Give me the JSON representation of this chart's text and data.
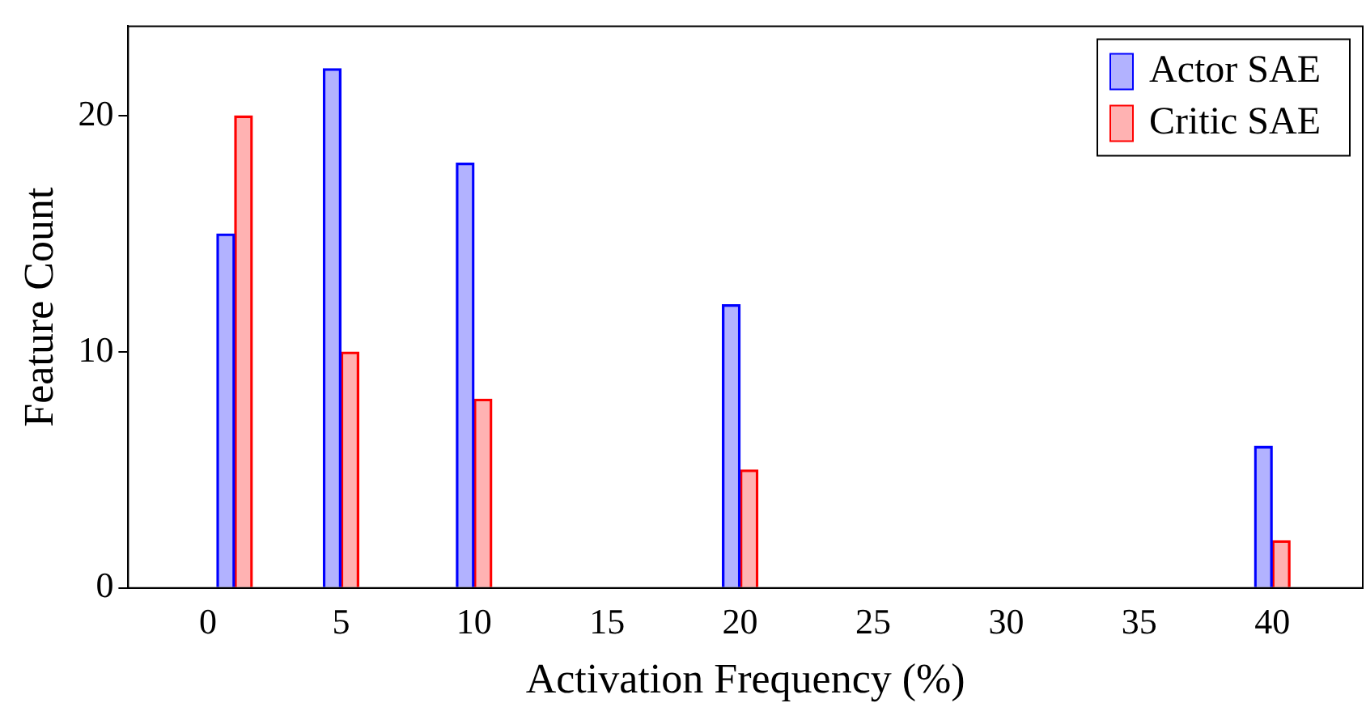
{
  "chart_data": {
    "type": "bar",
    "xlabel": "Activation Frequency (%)",
    "ylabel": "Feature Count",
    "x": [
      1,
      5,
      10,
      20,
      40
    ],
    "series": [
      {
        "name": "Actor SAE",
        "color": "#0000ff",
        "values": [
          15,
          22,
          18,
          12,
          6
        ]
      },
      {
        "name": "Critic SAE",
        "color": "#ff0000",
        "values": [
          20,
          10,
          8,
          5,
          2
        ]
      }
    ],
    "xlim": [
      -3,
      43.4
    ],
    "xticks": [
      0,
      5,
      10,
      15,
      20,
      25,
      30,
      35,
      40
    ],
    "ylim": [
      0,
      23.8
    ],
    "yticks": [
      0,
      10,
      20
    ],
    "grid": false,
    "legend": "top right"
  }
}
